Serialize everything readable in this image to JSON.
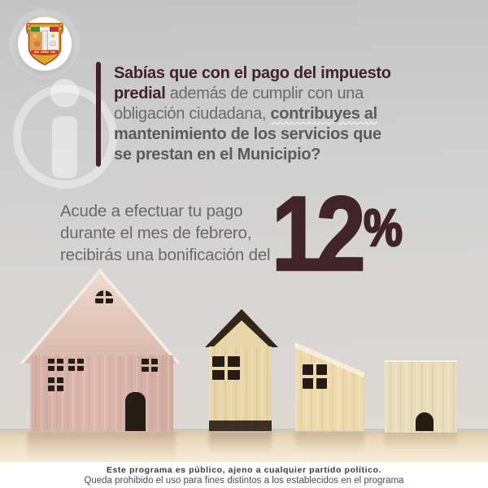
{
  "meta": {
    "description": "Municipal predial (property tax) February discount flyer"
  },
  "logo": {
    "icon": "municipal-coat-of-arms"
  },
  "watermark": {
    "icon": "info-icon"
  },
  "headline": {
    "segments": [
      {
        "text": "Sabías que con el pago del impuesto",
        "style": "maroon",
        "br": true
      },
      {
        "text": "predial",
        "style": "maroon"
      },
      {
        "text": " además de cumplir con una",
        "style": "gray",
        "br": true
      },
      {
        "text": "obligación ciudadana, ",
        "style": "gray"
      },
      {
        "text": "contribuyes al",
        "style": "grayBoldWavy",
        "br": true
      },
      {
        "text": "mantenimiento de los servicios que",
        "style": "grayBold",
        "br": true
      },
      {
        "text": "se prestan en el Municipio?",
        "style": "grayBold"
      }
    ]
  },
  "promo": {
    "lines": [
      "Acude a efectuar tu pago",
      "durante el mes de febrero,",
      "recibirás una bonificación del"
    ]
  },
  "discount": {
    "value": "12",
    "unit": "%"
  },
  "illustration": {
    "houses": [
      "large-pink-wood-house",
      "pointed-roof-wood-house",
      "slant-roof-wood-house",
      "small-wood-block-house"
    ]
  },
  "footer": {
    "line1": "Este programa es público, ajeno a cualquier partido político.",
    "line2": "Queda prohibido el uso para fines distintos a los establecidos en el programa"
  },
  "colors": {
    "maroon": "#40242a",
    "text_gray": "#6b6969",
    "text_gray_bold": "#5c5a5a",
    "background_gray": "#d2d1d1",
    "table_wood": "#efdfc4",
    "footer_bg": "#ffffff"
  }
}
